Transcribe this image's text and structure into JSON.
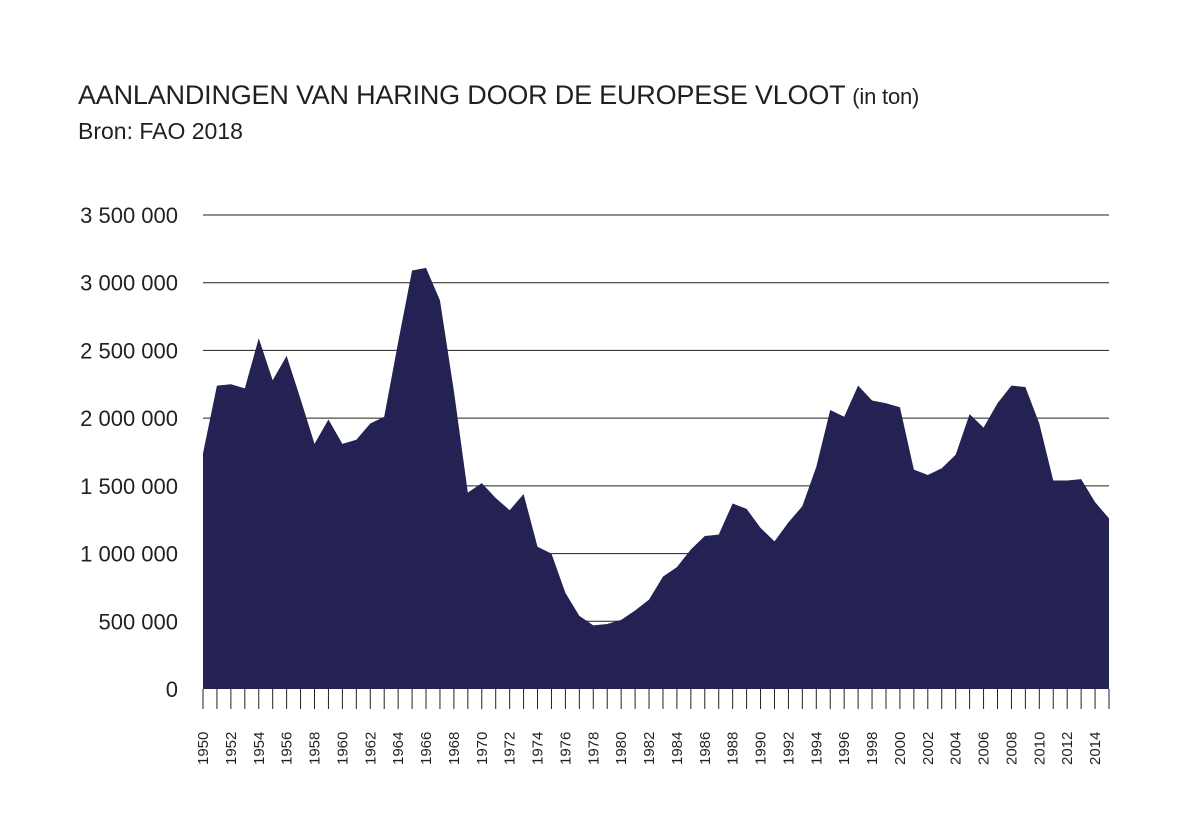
{
  "title": "AANLANDINGEN VAN HARING DOOR DE EUROPESE VLOOT",
  "title_unit": "(in ton)",
  "subtitle": "Bron: FAO 2018",
  "chart_data": {
    "type": "area",
    "x": [
      1950,
      1951,
      1952,
      1953,
      1954,
      1955,
      1956,
      1957,
      1958,
      1959,
      1960,
      1961,
      1962,
      1963,
      1964,
      1965,
      1966,
      1967,
      1968,
      1969,
      1970,
      1971,
      1972,
      1973,
      1974,
      1975,
      1976,
      1977,
      1978,
      1979,
      1980,
      1981,
      1982,
      1983,
      1984,
      1985,
      1986,
      1987,
      1988,
      1989,
      1990,
      1991,
      1992,
      1993,
      1994,
      1995,
      1996,
      1997,
      1998,
      1999,
      2000,
      2001,
      2002,
      2003,
      2004,
      2005,
      2006,
      2007,
      2008,
      2009,
      2010,
      2011,
      2012,
      2013,
      2014,
      2015
    ],
    "values": [
      1740000,
      2240000,
      2250000,
      2220000,
      2590000,
      2280000,
      2460000,
      2140000,
      1810000,
      1990000,
      1810000,
      1840000,
      1960000,
      2010000,
      2560000,
      3090000,
      3110000,
      2870000,
      2200000,
      1450000,
      1520000,
      1410000,
      1320000,
      1440000,
      1050000,
      1000000,
      710000,
      540000,
      470000,
      480000,
      510000,
      580000,
      660000,
      830000,
      900000,
      1030000,
      1130000,
      1140000,
      1370000,
      1330000,
      1190000,
      1090000,
      1230000,
      1350000,
      1640000,
      2060000,
      2010000,
      2240000,
      2130000,
      2110000,
      2080000,
      1620000,
      1580000,
      1630000,
      1730000,
      2030000,
      1930000,
      2110000,
      2240000,
      2230000,
      1960000,
      1540000,
      1540000,
      1550000,
      1380000,
      1260000
    ],
    "x_tick_labels": [
      "1950",
      "1952",
      "1954",
      "1956",
      "1958",
      "1960",
      "1962",
      "1964",
      "1966",
      "1968",
      "1970",
      "1972",
      "1974",
      "1976",
      "1978",
      "1980",
      "1982",
      "1984",
      "1986",
      "1988",
      "1990",
      "1992",
      "1994",
      "1996",
      "1998",
      "2000",
      "2002",
      "2004",
      "2006",
      "2008",
      "2010",
      "2012",
      "2014"
    ],
    "y_ticks": [
      0,
      500000,
      1000000,
      1500000,
      2000000,
      2500000,
      3000000,
      3500000
    ],
    "y_tick_labels": [
      "0",
      "500 000",
      "1 000 000",
      "1 500 000",
      "2 000 000",
      "2 500 000",
      "3 000 000",
      "3 500 000"
    ],
    "ylim": [
      0,
      3500000
    ],
    "xlim": [
      1950,
      2015
    ],
    "grid": true,
    "fill_color": "#232252",
    "grid_color": "#231f20"
  }
}
